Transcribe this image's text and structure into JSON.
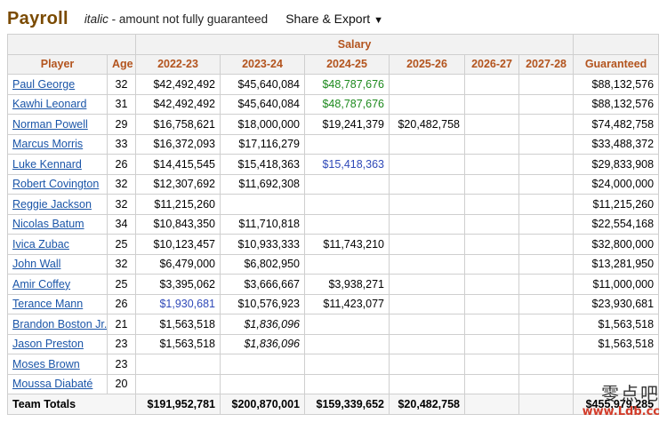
{
  "header": {
    "title": "Payroll",
    "legend_italic": "italic",
    "legend_text": " - amount not fully guaranteed",
    "share_label": "Share & Export",
    "share_caret": "▼"
  },
  "table": {
    "group_label": "Salary",
    "columns": [
      "Player",
      "Age",
      "2022-23",
      "2023-24",
      "2024-25",
      "2025-26",
      "2026-27",
      "2027-28",
      "Guaranteed"
    ],
    "rows": [
      {
        "player": "Paul George",
        "age": "32",
        "s2223": "$42,492,492",
        "s2324": "$45,640,084",
        "s2425": "$48,787,676",
        "s2526": "",
        "s2627": "",
        "s2728": "",
        "guaranteed": "$88,132,576"
      },
      {
        "player": "Kawhi Leonard",
        "age": "31",
        "s2223": "$42,492,492",
        "s2324": "$45,640,084",
        "s2425": "$48,787,676",
        "s2526": "",
        "s2627": "",
        "s2728": "",
        "guaranteed": "$88,132,576"
      },
      {
        "player": "Norman Powell",
        "age": "29",
        "s2223": "$16,758,621",
        "s2324": "$18,000,000",
        "s2425": "$19,241,379",
        "s2526": "$20,482,758",
        "s2627": "",
        "s2728": "",
        "guaranteed": "$74,482,758"
      },
      {
        "player": "Marcus Morris",
        "age": "33",
        "s2223": "$16,372,093",
        "s2324": "$17,116,279",
        "s2425": "",
        "s2526": "",
        "s2627": "",
        "s2728": "",
        "guaranteed": "$33,488,372"
      },
      {
        "player": "Luke Kennard",
        "age": "26",
        "s2223": "$14,415,545",
        "s2324": "$15,418,363",
        "s2425": "$15,418,363",
        "s2526": "",
        "s2627": "",
        "s2728": "",
        "guaranteed": "$29,833,908"
      },
      {
        "player": "Robert Covington",
        "age": "32",
        "s2223": "$12,307,692",
        "s2324": "$11,692,308",
        "s2425": "",
        "s2526": "",
        "s2627": "",
        "s2728": "",
        "guaranteed": "$24,000,000"
      },
      {
        "player": "Reggie Jackson",
        "age": "32",
        "s2223": "$11,215,260",
        "s2324": "",
        "s2425": "",
        "s2526": "",
        "s2627": "",
        "s2728": "",
        "guaranteed": "$11,215,260"
      },
      {
        "player": "Nicolas Batum",
        "age": "34",
        "s2223": "$10,843,350",
        "s2324": "$11,710,818",
        "s2425": "",
        "s2526": "",
        "s2627": "",
        "s2728": "",
        "guaranteed": "$22,554,168"
      },
      {
        "player": "Ivica Zubac",
        "age": "25",
        "s2223": "$10,123,457",
        "s2324": "$10,933,333",
        "s2425": "$11,743,210",
        "s2526": "",
        "s2627": "",
        "s2728": "",
        "guaranteed": "$32,800,000"
      },
      {
        "player": "John Wall",
        "age": "32",
        "s2223": "$6,479,000",
        "s2324": "$6,802,950",
        "s2425": "",
        "s2526": "",
        "s2627": "",
        "s2728": "",
        "guaranteed": "$13,281,950"
      },
      {
        "player": "Amir Coffey",
        "age": "25",
        "s2223": "$3,395,062",
        "s2324": "$3,666,667",
        "s2425": "$3,938,271",
        "s2526": "",
        "s2627": "",
        "s2728": "",
        "guaranteed": "$11,000,000"
      },
      {
        "player": "Terance Mann",
        "age": "26",
        "s2223": "$1,930,681",
        "s2324": "$10,576,923",
        "s2425": "$11,423,077",
        "s2526": "",
        "s2627": "",
        "s2728": "",
        "guaranteed": "$23,930,681"
      },
      {
        "player": "Brandon Boston Jr.",
        "age": "21",
        "s2223": "$1,563,518",
        "s2324": "$1,836,096",
        "s2425": "",
        "s2526": "",
        "s2627": "",
        "s2728": "",
        "guaranteed": "$1,563,518"
      },
      {
        "player": "Jason Preston",
        "age": "23",
        "s2223": "$1,563,518",
        "s2324": "$1,836,096",
        "s2425": "",
        "s2526": "",
        "s2627": "",
        "s2728": "",
        "guaranteed": "$1,563,518"
      },
      {
        "player": "Moses Brown",
        "age": "23",
        "s2223": "",
        "s2324": "",
        "s2425": "",
        "s2526": "",
        "s2627": "",
        "s2728": "",
        "guaranteed": ""
      },
      {
        "player": "Moussa Diabaté",
        "age": "20",
        "s2223": "",
        "s2324": "",
        "s2425": "",
        "s2526": "",
        "s2627": "",
        "s2728": "",
        "guaranteed": ""
      }
    ],
    "totals": {
      "label": "Team Totals",
      "s2223": "$191,952,781",
      "s2324": "$200,870,001",
      "s2425": "$159,339,652",
      "s2526": "$20,482,758",
      "s2627": "",
      "s2728": "",
      "guaranteed": "$455,979,285"
    }
  },
  "watermark": {
    "top": "零点吧",
    "bottom": "www.Ldb.cc"
  },
  "colors": {
    "title": "#7a4a00",
    "header_text": "#b3541e",
    "player_link": "#1a55a8",
    "player_option": "#1e8a1e",
    "team_option": "#2f49b8"
  }
}
